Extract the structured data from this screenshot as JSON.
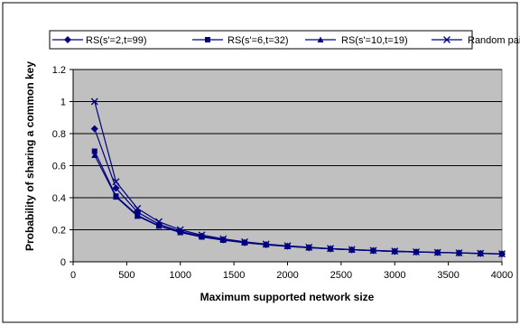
{
  "chart_data": {
    "type": "line",
    "xlabel": "Maximum supported network size",
    "ylabel": "Probability of sharing a common key",
    "xlim": [
      0,
      4000
    ],
    "ylim": [
      0,
      1.2
    ],
    "x_ticks": [
      "0",
      "500",
      "1000",
      "1500",
      "2000",
      "2500",
      "3000",
      "3500",
      "4000"
    ],
    "y_ticks": [
      "0",
      "0.2",
      "0.4",
      "0.6",
      "0.8",
      "1",
      "1.2"
    ],
    "grid": "horizontal",
    "plot_background": "#c0c0c0",
    "legend_position": "top",
    "x": [
      200,
      400,
      600,
      800,
      1000,
      1200,
      1400,
      1600,
      1800,
      2000,
      2200,
      2400,
      2600,
      2800,
      3000,
      3200,
      3400,
      3600,
      3800,
      4000
    ],
    "series": [
      {
        "name": "RS(s'=2,t=99)",
        "marker": "diamond",
        "color": "#000080",
        "values": [
          0.83,
          0.46,
          0.31,
          0.235,
          0.19,
          0.16,
          0.137,
          0.12,
          0.107,
          0.097,
          0.088,
          0.081,
          0.075,
          0.07,
          0.065,
          0.061,
          0.058,
          0.055,
          0.052,
          0.049
        ]
      },
      {
        "name": "RS(s'=6,t=32)",
        "marker": "square",
        "color": "#000080",
        "values": [
          0.69,
          0.41,
          0.29,
          0.225,
          0.185,
          0.157,
          0.136,
          0.12,
          0.107,
          0.097,
          0.089,
          0.081,
          0.075,
          0.07,
          0.065,
          0.061,
          0.058,
          0.055,
          0.052,
          0.049
        ]
      },
      {
        "name": "RS(s'=10,t=19)",
        "marker": "triangle",
        "color": "#000080",
        "values": [
          0.665,
          0.405,
          0.285,
          0.223,
          0.183,
          0.155,
          0.135,
          0.119,
          0.106,
          0.096,
          0.088,
          0.081,
          0.075,
          0.07,
          0.065,
          0.061,
          0.058,
          0.055,
          0.052,
          0.049
        ]
      },
      {
        "name": "Random pairwise keys",
        "marker": "x",
        "color": "#000080",
        "values": [
          1.0,
          0.5,
          0.333,
          0.25,
          0.2,
          0.167,
          0.143,
          0.125,
          0.111,
          0.1,
          0.091,
          0.083,
          0.077,
          0.071,
          0.067,
          0.0625,
          0.059,
          0.056,
          0.053,
          0.05
        ]
      }
    ]
  }
}
